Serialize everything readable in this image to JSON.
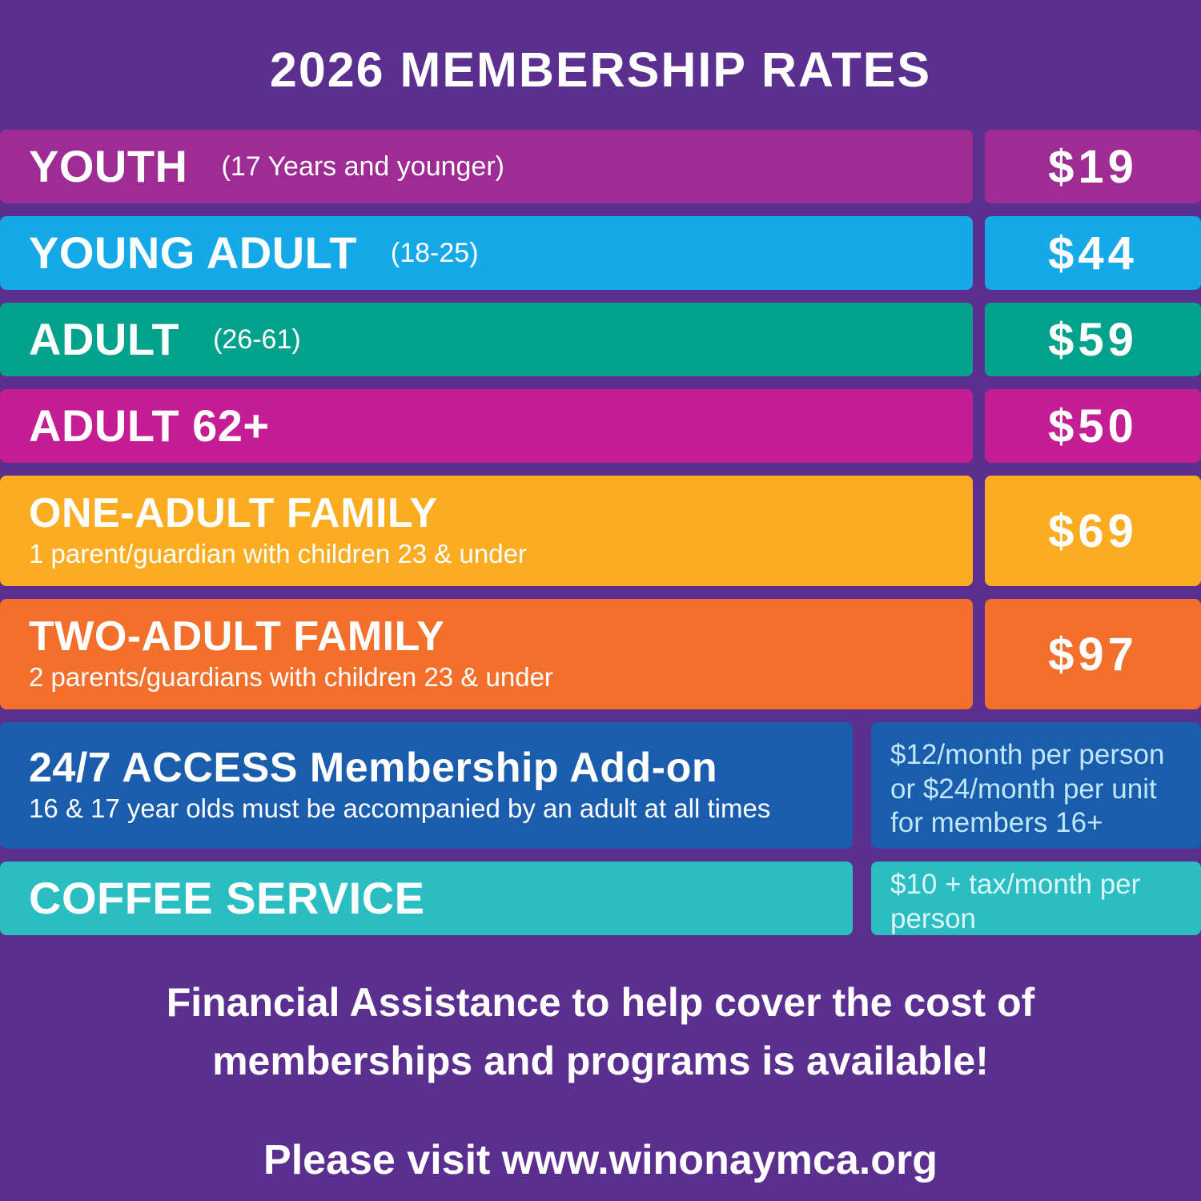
{
  "page": {
    "title": "2026 MEMBERSHIP RATES",
    "footer_line1": "Financial Assistance to help cover the cost of",
    "footer_line2": "memberships and programs is available!",
    "visit_text": "Please visit www.winonaymca.org",
    "colors": {
      "background": "#5a2f90",
      "text": "#ffffff"
    }
  },
  "rates": [
    {
      "label": "YOUTH",
      "qualifier": "(17 Years and younger)",
      "price": "$19",
      "color": "#9e2c94"
    },
    {
      "label": "YOUNG ADULT",
      "qualifier": "(18-25)",
      "price": "$44",
      "color": "#16a9e8"
    },
    {
      "label": "ADULT",
      "qualifier": "(26-61)",
      "price": "$59",
      "color": "#02a28d"
    },
    {
      "label": "ADULT 62+",
      "qualifier": "",
      "price": "$50",
      "color": "#c51d94"
    },
    {
      "label": "ONE-ADULT FAMILY",
      "description": "1 parent/guardian with children 23 & under",
      "price": "$69",
      "color": "#fbac21"
    },
    {
      "label": "TWO-ADULT FAMILY",
      "description": "2 parents/guardians with children 23 & under",
      "price": "$97",
      "color": "#f2702b"
    }
  ],
  "addons": [
    {
      "label": "24/7 ACCESS Membership Add-on",
      "description": "16 & 17 year olds must be accompanied by an adult at all times",
      "price_lines": [
        "$12/month per person",
        "or $24/month per unit",
        "for members 16+"
      ],
      "color": "#1a5dad",
      "price_color": "#bfe7f9"
    },
    {
      "label": "COFFEE SERVICE",
      "price_lines": [
        "$10 + tax/month per",
        "person"
      ],
      "color": "#2abdc2",
      "price_color": "#dcf6f7"
    }
  ]
}
